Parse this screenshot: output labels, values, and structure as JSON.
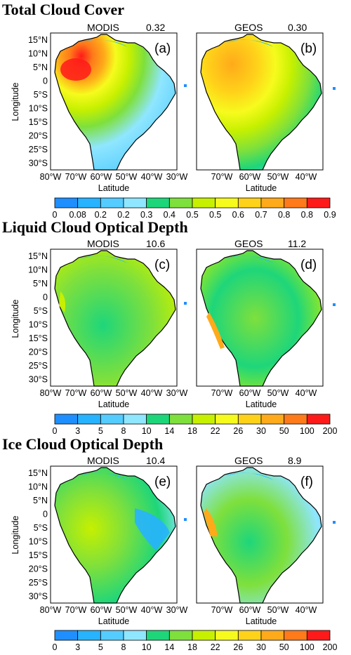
{
  "sections": [
    {
      "title": "Total Cloud Cover",
      "panels": [
        {
          "model": "MODIS",
          "value": "0.32",
          "label": "(a)"
        },
        {
          "model": "GEOS",
          "value": "0.30",
          "label": "(b)"
        }
      ],
      "colorbar_labels": [
        "0",
        "0.08",
        "0.2",
        "0.2",
        "0.3",
        "0.4",
        "0.5",
        "0.5",
        "0.6",
        "0.7",
        "0.8",
        "0.8",
        "0.9"
      ],
      "colorbar_colors": [
        "#1f8fff",
        "#27b3ff",
        "#55ccff",
        "#8fe6ff",
        "#1ed67a",
        "#7ee03c",
        "#c6f000",
        "#f6fb1d",
        "#ffd21a",
        "#ffaa1a",
        "#ff7a1a",
        "#ff1a1a"
      ]
    },
    {
      "title": "Liquid Cloud Optical Depth",
      "panels": [
        {
          "model": "MODIS",
          "value": "10.6",
          "label": "(c)"
        },
        {
          "model": "GEOS",
          "value": "11.2",
          "label": "(d)"
        }
      ],
      "colorbar_labels": [
        "0",
        "3",
        "5",
        "8",
        "10",
        "14",
        "18",
        "22",
        "26",
        "30",
        "50",
        "100",
        "200"
      ],
      "colorbar_colors": [
        "#1f8fff",
        "#27b3ff",
        "#55ccff",
        "#8fe6ff",
        "#1ed67a",
        "#7ee03c",
        "#c6f000",
        "#f6fb1d",
        "#ffd21a",
        "#ffaa1a",
        "#ff7a1a",
        "#ff1a1a"
      ]
    },
    {
      "title": "Ice Cloud Optical Depth",
      "panels": [
        {
          "model": "MODIS",
          "value": "10.4",
          "label": "(e)"
        },
        {
          "model": "GEOS",
          "value": "8.9",
          "label": "(f)"
        }
      ],
      "colorbar_labels": [
        "0",
        "3",
        "5",
        "8",
        "10",
        "14",
        "18",
        "22",
        "26",
        "30",
        "50",
        "100",
        "200"
      ],
      "colorbar_colors": [
        "#1f8fff",
        "#27b3ff",
        "#55ccff",
        "#8fe6ff",
        "#1ed67a",
        "#7ee03c",
        "#c6f000",
        "#f6fb1d",
        "#ffd21a",
        "#ffaa1a",
        "#ff7a1a",
        "#ff1a1a"
      ]
    }
  ],
  "lat_ticks": [
    "15°N",
    "10°N",
    "5°N",
    "0",
    "5°S",
    "10°S",
    "15°S",
    "20°S",
    "25°S",
    "30°S"
  ],
  "lon_ticks_left": [
    "80°W",
    "70°W",
    "60°W",
    "50°W",
    "40°W",
    "30°W"
  ],
  "lon_ticks_right": [
    "70°W",
    "60°W",
    "50°W",
    "40°W"
  ],
  "y_axis_label": "Longitude",
  "x_axis_label": "Latitude",
  "colors": {
    "ocean": "#ffffff",
    "border": "#000000"
  }
}
